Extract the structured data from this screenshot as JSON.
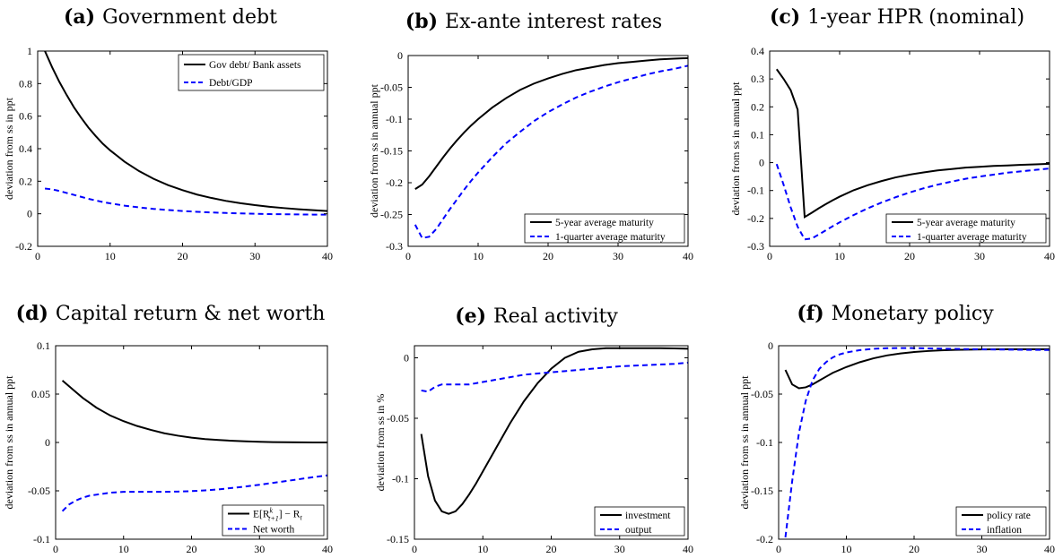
{
  "chart_data": [
    {
      "type": "line",
      "panel": "a",
      "title_prefix": "(a)",
      "title": "Government debt",
      "ylabel": "deviation from ss in ppt",
      "xlabel": "",
      "xlim": [
        0,
        40
      ],
      "ylim": [
        -0.2,
        1
      ],
      "xticks": [
        0,
        10,
        20,
        30,
        40
      ],
      "yticks": [
        -0.2,
        0,
        0.2,
        0.4,
        0.6,
        0.8,
        1
      ],
      "ytick_labels": [
        "-0.2",
        "0",
        "0.2",
        "0.4",
        "0.6",
        "0.8",
        "1"
      ],
      "legend_position": "top-right",
      "grid": false,
      "series": [
        {
          "name": "Gov debt/ Bank assets",
          "color": "#000000",
          "dash": "solid",
          "x": [
            1,
            2,
            3,
            4,
            5,
            6,
            7,
            8,
            9,
            10,
            12,
            14,
            16,
            18,
            20,
            22,
            24,
            26,
            28,
            30,
            32,
            34,
            36,
            38,
            40
          ],
          "y": [
            1.0,
            0.9,
            0.81,
            0.73,
            0.655,
            0.59,
            0.53,
            0.478,
            0.43,
            0.39,
            0.32,
            0.262,
            0.215,
            0.176,
            0.145,
            0.118,
            0.097,
            0.079,
            0.065,
            0.053,
            0.043,
            0.035,
            0.028,
            0.022,
            0.017
          ]
        },
        {
          "name": "Debt/GDP",
          "color": "#0000ff",
          "dash": "dashed",
          "x": [
            1,
            2,
            3,
            4,
            5,
            6,
            7,
            8,
            9,
            10,
            12,
            14,
            16,
            18,
            20,
            22,
            24,
            26,
            28,
            30,
            32,
            34,
            36,
            38,
            40
          ],
          "y": [
            0.155,
            0.15,
            0.14,
            0.128,
            0.116,
            0.104,
            0.092,
            0.082,
            0.072,
            0.064,
            0.05,
            0.039,
            0.03,
            0.023,
            0.017,
            0.012,
            0.008,
            0.005,
            0.002,
            0.0,
            -0.002,
            -0.003,
            -0.004,
            -0.005,
            -0.005
          ]
        }
      ]
    },
    {
      "type": "line",
      "panel": "b",
      "title_prefix": "(b)",
      "title": "Ex-ante interest rates",
      "ylabel": "deviation from ss in annual ppt",
      "xlabel": "",
      "xlim": [
        0,
        40
      ],
      "ylim": [
        -0.3,
        0
      ],
      "xticks": [
        0,
        10,
        20,
        30,
        40
      ],
      "yticks": [
        -0.3,
        -0.25,
        -0.2,
        -0.15,
        -0.1,
        -0.05,
        0
      ],
      "ytick_labels": [
        "-0.3",
        "-0.25",
        "-0.2",
        "-0.15",
        "-0.1",
        "-0.05",
        "0"
      ],
      "legend_position": "bottom-right",
      "grid": false,
      "series": [
        {
          "name": "5-year average maturity",
          "color": "#000000",
          "dash": "solid",
          "x": [
            1,
            2,
            3,
            4,
            5,
            6,
            7,
            8,
            9,
            10,
            12,
            14,
            16,
            18,
            20,
            22,
            24,
            26,
            28,
            30,
            32,
            34,
            36,
            38,
            40
          ],
          "y": [
            -0.21,
            -0.203,
            -0.19,
            -0.175,
            -0.16,
            -0.146,
            -0.133,
            -0.121,
            -0.11,
            -0.1,
            -0.082,
            -0.067,
            -0.054,
            -0.044,
            -0.036,
            -0.029,
            -0.023,
            -0.019,
            -0.015,
            -0.012,
            -0.01,
            -0.008,
            -0.006,
            -0.005,
            -0.004
          ]
        },
        {
          "name": "1-quarter average maturity",
          "color": "#0000ff",
          "dash": "dashed",
          "x": [
            1,
            2,
            3,
            4,
            5,
            6,
            7,
            8,
            9,
            10,
            12,
            14,
            16,
            18,
            20,
            22,
            24,
            26,
            28,
            30,
            32,
            34,
            36,
            38,
            40
          ],
          "y": [
            -0.266,
            -0.287,
            -0.285,
            -0.273,
            -0.257,
            -0.241,
            -0.226,
            -0.211,
            -0.197,
            -0.184,
            -0.16,
            -0.138,
            -0.12,
            -0.103,
            -0.089,
            -0.077,
            -0.066,
            -0.057,
            -0.049,
            -0.042,
            -0.036,
            -0.03,
            -0.025,
            -0.021,
            -0.016
          ]
        }
      ]
    },
    {
      "type": "line",
      "panel": "c",
      "title_prefix": "(c)",
      "title": "1-year HPR (nominal)",
      "ylabel": "deviation from ss in annual ppt",
      "xlabel": "",
      "xlim": [
        0,
        40
      ],
      "ylim": [
        -0.3,
        0.4
      ],
      "xticks": [
        0,
        10,
        20,
        30,
        40
      ],
      "yticks": [
        -0.3,
        -0.2,
        -0.1,
        0,
        0.1,
        0.2,
        0.3,
        0.4
      ],
      "ytick_labels": [
        "-0.3",
        "-0.2",
        "-0.1",
        "0",
        "0.1",
        "0.2",
        "0.3",
        "0.4"
      ],
      "legend_position": "bottom-right",
      "grid": false,
      "series": [
        {
          "name": "5-year average maturity",
          "color": "#000000",
          "dash": "solid",
          "x": [
            1,
            2,
            3,
            4,
            5,
            6,
            7,
            8,
            9,
            10,
            12,
            14,
            16,
            18,
            20,
            22,
            24,
            26,
            28,
            30,
            32,
            34,
            36,
            38,
            40
          ],
          "y": [
            0.335,
            0.3,
            0.26,
            0.19,
            -0.195,
            -0.18,
            -0.164,
            -0.149,
            -0.135,
            -0.122,
            -0.099,
            -0.081,
            -0.066,
            -0.053,
            -0.043,
            -0.035,
            -0.028,
            -0.023,
            -0.018,
            -0.015,
            -0.012,
            -0.01,
            -0.008,
            -0.006,
            -0.004
          ]
        },
        {
          "name": "1-quarter average maturity",
          "color": "#0000ff",
          "dash": "dashed",
          "x": [
            1,
            2,
            3,
            4,
            5,
            6,
            7,
            8,
            9,
            10,
            12,
            14,
            16,
            18,
            20,
            22,
            24,
            26,
            28,
            30,
            32,
            34,
            36,
            38,
            40
          ],
          "y": [
            -0.005,
            -0.08,
            -0.16,
            -0.23,
            -0.275,
            -0.272,
            -0.258,
            -0.243,
            -0.228,
            -0.214,
            -0.188,
            -0.164,
            -0.143,
            -0.124,
            -0.107,
            -0.092,
            -0.079,
            -0.068,
            -0.058,
            -0.05,
            -0.043,
            -0.036,
            -0.031,
            -0.026,
            -0.021
          ]
        }
      ]
    },
    {
      "type": "line",
      "panel": "d",
      "title_prefix": "(d)",
      "title": "Capital return & net worth",
      "ylabel": "deviation from ss in annual ppt",
      "xlabel": "",
      "xlim": [
        0,
        40
      ],
      "ylim": [
        -0.1,
        0.1
      ],
      "xticks": [
        0,
        10,
        20,
        30,
        40
      ],
      "yticks": [
        -0.1,
        -0.05,
        0,
        0.05,
        0.1
      ],
      "ytick_labels": [
        "-0.1",
        "-0.05",
        "0",
        "0.05",
        "0.1"
      ],
      "legend_position": "bottom-right",
      "grid": false,
      "series": [
        {
          "name": "E[R^k_{t+1}] − R_t",
          "legend_base": "E[R",
          "legend_sup": "k",
          "legend_sub": "t+1",
          "legend_tail": "] − R",
          "legend_tail_sub": "t",
          "color": "#000000",
          "dash": "solid",
          "x": [
            1,
            2,
            3,
            4,
            5,
            6,
            7,
            8,
            9,
            10,
            12,
            14,
            16,
            18,
            20,
            22,
            24,
            26,
            28,
            30,
            32,
            34,
            36,
            38,
            40
          ],
          "y": [
            0.064,
            0.058,
            0.052,
            0.046,
            0.041,
            0.036,
            0.032,
            0.028,
            0.025,
            0.022,
            0.017,
            0.013,
            0.0095,
            0.007,
            0.005,
            0.0035,
            0.0025,
            0.0017,
            0.0011,
            0.0007,
            0.0004,
            0.0002,
            0.0001,
            0.0,
            0.0
          ]
        },
        {
          "name": "Net worth",
          "color": "#0000ff",
          "dash": "dashed",
          "x": [
            1,
            2,
            3,
            4,
            5,
            6,
            7,
            8,
            9,
            10,
            12,
            14,
            16,
            18,
            20,
            22,
            24,
            26,
            28,
            30,
            32,
            34,
            36,
            38,
            40
          ],
          "y": [
            -0.071,
            -0.064,
            -0.06,
            -0.057,
            -0.055,
            -0.054,
            -0.053,
            -0.052,
            -0.0515,
            -0.051,
            -0.051,
            -0.051,
            -0.051,
            -0.0508,
            -0.0503,
            -0.0495,
            -0.0485,
            -0.047,
            -0.0455,
            -0.0437,
            -0.0418,
            -0.0398,
            -0.0378,
            -0.0358,
            -0.034
          ]
        }
      ]
    },
    {
      "type": "line",
      "panel": "e",
      "title_prefix": "(e)",
      "title": "Real activity",
      "ylabel": "deviation from ss in %",
      "xlabel": "",
      "xlim": [
        0,
        40
      ],
      "ylim": [
        -0.15,
        0.01
      ],
      "xticks": [
        0,
        10,
        20,
        30,
        40
      ],
      "yticks": [
        -0.15,
        -0.1,
        -0.05,
        0
      ],
      "ytick_labels": [
        "-0.15",
        "-0.1",
        "-0.05",
        "0"
      ],
      "legend_position": "bottom-right",
      "grid": false,
      "series": [
        {
          "name": "investment",
          "color": "#000000",
          "dash": "solid",
          "x": [
            1,
            2,
            3,
            4,
            5,
            6,
            7,
            8,
            9,
            10,
            12,
            14,
            16,
            18,
            20,
            22,
            24,
            26,
            28,
            30,
            32,
            34,
            36,
            38,
            40
          ],
          "y": [
            -0.063,
            -0.098,
            -0.118,
            -0.127,
            -0.129,
            -0.127,
            -0.121,
            -0.113,
            -0.104,
            -0.094,
            -0.074,
            -0.054,
            -0.036,
            -0.021,
            -0.009,
            0.0,
            0.005,
            0.007,
            0.008,
            0.008,
            0.008,
            0.008,
            0.008,
            0.0078,
            0.0075
          ]
        },
        {
          "name": "output",
          "color": "#0000ff",
          "dash": "dashed",
          "x": [
            1,
            2,
            3,
            4,
            5,
            6,
            7,
            8,
            9,
            10,
            12,
            14,
            16,
            18,
            20,
            22,
            24,
            26,
            28,
            30,
            32,
            34,
            36,
            38,
            40
          ],
          "y": [
            -0.027,
            -0.028,
            -0.024,
            -0.022,
            -0.022,
            -0.022,
            -0.022,
            -0.022,
            -0.021,
            -0.02,
            -0.018,
            -0.016,
            -0.014,
            -0.013,
            -0.012,
            -0.011,
            -0.01,
            -0.009,
            -0.008,
            -0.007,
            -0.0065,
            -0.006,
            -0.0055,
            -0.005,
            -0.004
          ]
        }
      ]
    },
    {
      "type": "line",
      "panel": "f",
      "title_prefix": "(f)",
      "title": "Monetary policy",
      "ylabel": "deviation from ss in annual ppt",
      "xlabel": "",
      "xlim": [
        0,
        40
      ],
      "ylim": [
        -0.2,
        0
      ],
      "xticks": [
        0,
        10,
        20,
        30,
        40
      ],
      "yticks": [
        -0.2,
        -0.15,
        -0.1,
        -0.05,
        0
      ],
      "ytick_labels": [
        "-0.2",
        "-0.15",
        "-0.1",
        "-0.05",
        "0"
      ],
      "legend_position": "bottom-right",
      "grid": false,
      "series": [
        {
          "name": "policy rate",
          "color": "#000000",
          "dash": "solid",
          "x": [
            1,
            2,
            3,
            4,
            5,
            6,
            7,
            8,
            9,
            10,
            12,
            14,
            16,
            18,
            20,
            22,
            24,
            26,
            28,
            30,
            32,
            34,
            36,
            38,
            40
          ],
          "y": [
            -0.025,
            -0.04,
            -0.044,
            -0.043,
            -0.04,
            -0.036,
            -0.032,
            -0.028,
            -0.025,
            -0.022,
            -0.017,
            -0.013,
            -0.01,
            -0.008,
            -0.0065,
            -0.0055,
            -0.0048,
            -0.0043,
            -0.004,
            -0.0038,
            -0.0037,
            -0.0036,
            -0.0036,
            -0.0036,
            -0.0036
          ]
        },
        {
          "name": "inflation",
          "color": "#0000ff",
          "dash": "dashed",
          "x": [
            1,
            2,
            3,
            4,
            5,
            6,
            7,
            8,
            9,
            10,
            12,
            14,
            16,
            18,
            20,
            22,
            24,
            26,
            28,
            30,
            32,
            34,
            36,
            38,
            40
          ],
          "y": [
            -0.198,
            -0.14,
            -0.09,
            -0.057,
            -0.036,
            -0.024,
            -0.017,
            -0.012,
            -0.009,
            -0.007,
            -0.0045,
            -0.0032,
            -0.0026,
            -0.0024,
            -0.0025,
            -0.0028,
            -0.003,
            -0.0033,
            -0.0035,
            -0.0037,
            -0.0039,
            -0.004,
            -0.0042,
            -0.0043,
            -0.0044
          ]
        }
      ]
    }
  ]
}
